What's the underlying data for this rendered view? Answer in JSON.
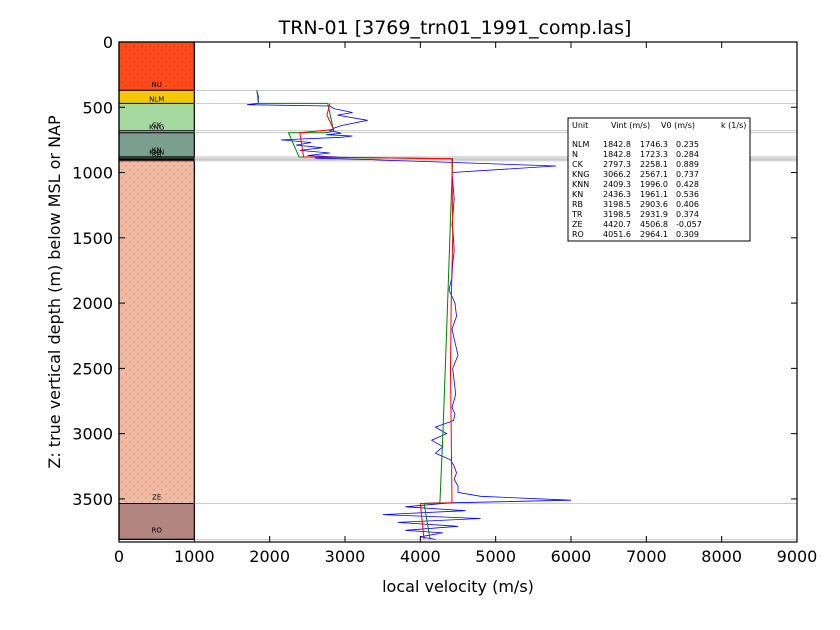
{
  "chart_data": {
    "type": "line",
    "title": "TRN-01 [3769_trn01_1991_comp.las]",
    "xlabel": "local velocity (m/s)",
    "ylabel": "Z: true vertical depth (m) below MSL or NAP",
    "xlim": [
      0,
      9000
    ],
    "ylim": [
      3830,
      0
    ],
    "x_ticks": [
      "0",
      "1000",
      "2000",
      "3000",
      "4000",
      "5000",
      "6000",
      "7000",
      "8000",
      "9000"
    ],
    "y_ticks": [
      "0",
      "500",
      "1000",
      "1500",
      "2000",
      "2500",
      "3000",
      "3500"
    ],
    "grid": false,
    "units": [
      {
        "name": "",
        "top": 0,
        "bottom": 370,
        "color": "#ff4a1c",
        "dotted": true
      },
      {
        "name": "NU",
        "top": 370,
        "bottom": 375,
        "color": "#ff4a1c",
        "dotted": false
      },
      {
        "name": "NLM",
        "top": 375,
        "bottom": 470,
        "color": "#f2c800",
        "dotted": false
      },
      {
        "name": "N",
        "top": 470,
        "bottom": 670,
        "color": "#a6d9a0",
        "dotted": false
      },
      {
        "name": "CK",
        "top": 670,
        "bottom": 690,
        "color": "#a6d9a0",
        "dotted": false
      },
      {
        "name": "KNG",
        "top": 690,
        "bottom": 695,
        "color": "#7a9f8c",
        "dotted": false
      },
      {
        "name": "KNN",
        "top": 695,
        "bottom": 880,
        "color": "#7a9f8c",
        "dotted": false
      },
      {
        "name": "KN",
        "top": 880,
        "bottom": 895,
        "color": "#7a9f8c",
        "dotted": false
      },
      {
        "name": "RB",
        "top": 895,
        "bottom": 910,
        "color": "#b89a8e",
        "dotted": false
      },
      {
        "name": "TR",
        "top": 910,
        "bottom": 3530,
        "color": "#f1b9a2",
        "dotted": true
      },
      {
        "name": "ZE",
        "top": 3530,
        "bottom": 3535,
        "color": "#f1b9a2",
        "dotted": false
      },
      {
        "name": "RO",
        "top": 3535,
        "bottom": 3810,
        "color": "#b38580",
        "dotted": false
      }
    ],
    "unit_labels": [
      {
        "text": "NU",
        "depth": 330
      },
      {
        "text": "NLM",
        "depth": 440
      },
      {
        "text": "CK",
        "depth": 640
      },
      {
        "text": "KNG",
        "depth": 655
      },
      {
        "text": "KN",
        "depth": 830
      },
      {
        "text": "KNN",
        "depth": 845
      },
      {
        "text": "RB",
        "depth": 865
      },
      {
        "text": "ZE",
        "depth": 3490
      },
      {
        "text": "RO",
        "depth": 3740
      }
    ],
    "boundary_lines": [
      370,
      470,
      680,
      695,
      880,
      890,
      900,
      910,
      3535,
      3810
    ],
    "table_header": {
      "unit": "Unit",
      "vint": "Vint (m/s)",
      "v0": "V0 (m/s)",
      "k": "k (1/s)"
    },
    "table_rows": [
      {
        "unit": "NLM",
        "vint": "1842.8",
        "v0": "1746.3",
        "k": "0.235"
      },
      {
        "unit": "N",
        "vint": "1842.8",
        "v0": "1723.3",
        "k": "0.284"
      },
      {
        "unit": "CK",
        "vint": "2797.3",
        "v0": "2258.1",
        "k": "0.889"
      },
      {
        "unit": "KNG",
        "vint": "3066.2",
        "v0": "2567.1",
        "k": "0.737"
      },
      {
        "unit": "KNN",
        "vint": "2409.3",
        "v0": "1996.0",
        "k": "0.428"
      },
      {
        "unit": "KN",
        "vint": "2436.3",
        "v0": "1961.1",
        "k": "0.536"
      },
      {
        "unit": "RB",
        "vint": "3198.5",
        "v0": "2903.6",
        "k": "0.406"
      },
      {
        "unit": "TR",
        "vint": "3198.5",
        "v0": "2931.9",
        "k": "0.374"
      },
      {
        "unit": "ZE",
        "vint": "4420.7",
        "v0": "4506.8",
        "k": "-0.057"
      },
      {
        "unit": "RO",
        "vint": "4051.6",
        "v0": "2964.1",
        "k": "0.309"
      }
    ],
    "series": [
      {
        "name": "",
        "color": "#0000ff",
        "x": [
          1830,
          1850,
          1850,
          1700,
          2800,
          2850,
          3100,
          2900,
          3300,
          2950,
          2850,
          2800,
          2900,
          2950,
          2750,
          3100,
          2950,
          2150,
          2550,
          2350,
          2700,
          2400,
          2800,
          2500,
          2900,
          2600,
          3300,
          3500,
          4300,
          5800,
          4420,
          4450,
          4420,
          4440,
          4450,
          4430,
          4420,
          4380,
          4460,
          4480,
          4420,
          4460,
          4500,
          4430,
          4450,
          4470,
          4420,
          4460,
          4440,
          4200,
          4350,
          4150,
          4300,
          4200,
          4400,
          4450,
          4480,
          4450,
          4500,
          4500,
          4800,
          6000,
          4400,
          3800,
          4600,
          3500,
          4800,
          3700,
          4500,
          3800,
          4300,
          4000,
          4200
        ],
        "y": [
          370,
          420,
          470,
          480,
          490,
          510,
          540,
          560,
          600,
          640,
          660,
          680,
          690,
          700,
          710,
          720,
          730,
          750,
          770,
          790,
          810,
          830,
          850,
          870,
          880,
          890,
          900,
          905,
          920,
          950,
          1000,
          1200,
          1400,
          1500,
          1600,
          1700,
          1800,
          1900,
          2000,
          2100,
          2200,
          2300,
          2400,
          2500,
          2600,
          2700,
          2800,
          2850,
          2900,
          2950,
          3000,
          3050,
          3100,
          3150,
          3200,
          3250,
          3300,
          3350,
          3400,
          3450,
          3480,
          3510,
          3530,
          3560,
          3590,
          3620,
          3650,
          3680,
          3710,
          3740,
          3760,
          3790,
          3810
        ]
      },
      {
        "name": "",
        "color": "#008000",
        "x": [
          1830,
          1850,
          2770,
          2850,
          2790,
          2720,
          2250,
          2390,
          4430,
          4410,
          4350,
          4300,
          4260,
          4050,
          4130
        ],
        "y": [
          370,
          470,
          470,
          680,
          690,
          695,
          695,
          880,
          895,
          1200,
          2200,
          3000,
          3530,
          3535,
          3810
        ]
      },
      {
        "name": "",
        "color": "#ff0000",
        "x": [
          2800,
          2760,
          2850,
          2400,
          2450,
          4420,
          4430,
          4410,
          4400,
          4420,
          4000,
          4050
        ],
        "y": [
          470,
          560,
          670,
          695,
          880,
          895,
          1500,
          2000,
          2500,
          3530,
          3535,
          3810
        ]
      }
    ]
  }
}
